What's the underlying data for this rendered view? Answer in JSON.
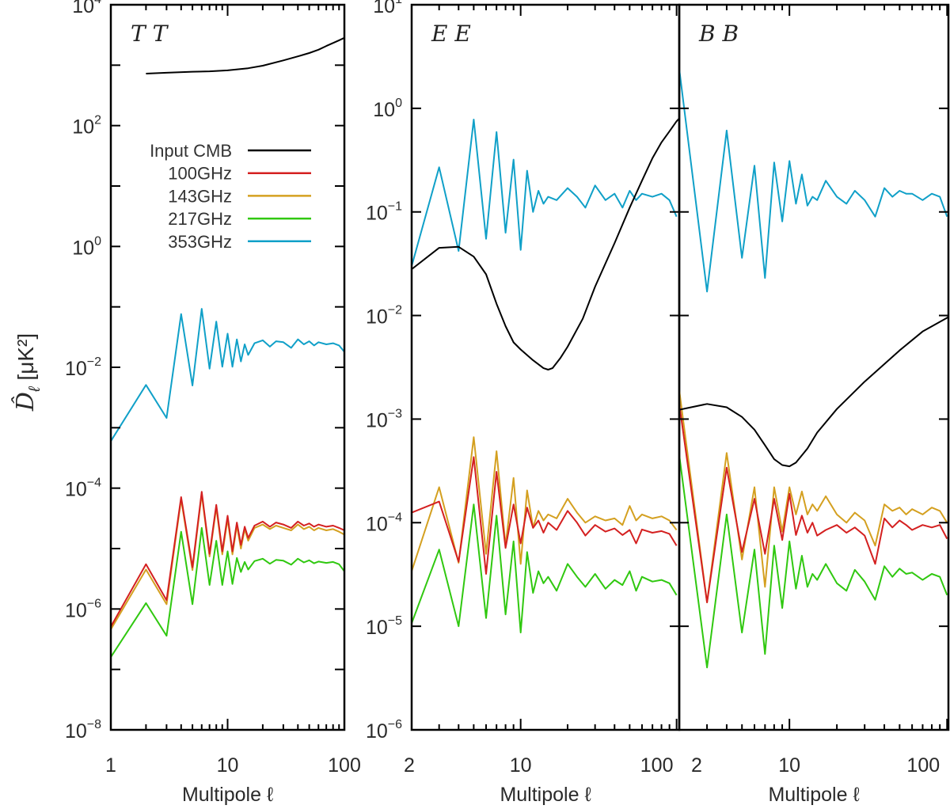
{
  "chart_data": {
    "type": "line",
    "ylabel": {
      "symbol": "D̂",
      "subscript": "ℓ",
      "unit": "[μK²]"
    },
    "legend": [
      {
        "label": "Input CMB",
        "color": "#000000"
      },
      {
        "label": "100GHz",
        "color": "#d42020"
      },
      {
        "label": "143GHz",
        "color": "#d4a020"
      },
      {
        "label": "217GHz",
        "color": "#30c810"
      },
      {
        "label": "353GHz",
        "color": "#10a0c8"
      }
    ],
    "legend_placement": "upper-left of first panel",
    "panels": [
      {
        "title": "TT",
        "xlabel": "Multipole ℓ",
        "xscale": "log",
        "yscale": "log",
        "xlim": [
          1,
          100
        ],
        "ylim": [
          1e-08,
          10000.0
        ],
        "xticks": [
          {
            "value": 1,
            "label": "1"
          },
          {
            "value": 10,
            "label": "10"
          },
          {
            "value": 100,
            "label": "100"
          }
        ],
        "yticks": [
          {
            "value": 10000.0,
            "exp": "4"
          },
          {
            "value": 100.0,
            "exp": "2"
          },
          {
            "value": 1,
            "exp": "0"
          },
          {
            "value": 0.01,
            "exp": "−2"
          },
          {
            "value": 0.0001,
            "exp": "−4"
          },
          {
            "value": 1e-06,
            "exp": "−6"
          },
          {
            "value": 1e-08,
            "exp": "−8"
          }
        ],
        "l": [
          1,
          2,
          3,
          4,
          5,
          6,
          7,
          8,
          9,
          10,
          11,
          12,
          13,
          14,
          15,
          17,
          20,
          23,
          26,
          30,
          35,
          40,
          45,
          50,
          55,
          60,
          70,
          80,
          90,
          100
        ],
        "series": [
          {
            "name": "100GHz",
            "values": [
              5.1e-07,
              5.5e-06,
              1.4e-06,
              7.1e-05,
              4.9e-06,
              8.7e-05,
              8.2e-06,
              5.3e-05,
              9e-06,
              3.5e-05,
              9e-06,
              2.7e-05,
              1.15e-05,
              2.3e-05,
              1.5e-05,
              2.4e-05,
              2.8e-05,
              2.3e-05,
              2.7e-05,
              2.5e-05,
              2.2e-05,
              2.8e-05,
              2.4e-05,
              2.6e-05,
              2.3e-05,
              2.5e-05,
              2.3e-05,
              2.4e-05,
              2.2e-05,
              2e-05
            ]
          },
          {
            "name": "143GHz",
            "values": [
              4.6e-07,
              4.5e-06,
              1.2e-06,
              6.5e-05,
              4.4e-06,
              8e-05,
              7.4e-06,
              4.8e-05,
              8e-06,
              3.1e-05,
              8e-06,
              2.4e-05,
              1e-05,
              2.1e-05,
              1.35e-05,
              2.2e-05,
              2.5e-05,
              2.1e-05,
              2.4e-05,
              2.2e-05,
              2e-05,
              2.5e-05,
              2.1e-05,
              2.3e-05,
              2e-05,
              2.2e-05,
              2e-05,
              2.1e-05,
              1.9e-05,
              1.7e-05
            ]
          },
          {
            "name": "217GHz",
            "values": [
              1.6e-07,
              1.25e-06,
              3.6e-07,
              1.9e-05,
              1.2e-06,
              2.2e-05,
              2.5e-06,
              1.35e-05,
              2.5e-06,
              9e-06,
              2.6e-06,
              7e-06,
              4.1e-06,
              6e-06,
              4.5e-06,
              6.2e-06,
              6.8e-06,
              5.6e-06,
              6.5e-06,
              6.3e-06,
              5.4e-06,
              6.8e-06,
              5.9e-06,
              6.4e-06,
              5.7e-06,
              6.1e-06,
              5.8e-06,
              6e-06,
              5.5e-06,
              4.2e-06
            ]
          },
          {
            "name": "353GHz",
            "values": [
              0.0006,
              0.0051,
              0.00145,
              0.076,
              0.005,
              0.093,
              0.0095,
              0.057,
              0.0102,
              0.036,
              0.0102,
              0.029,
              0.0125,
              0.024,
              0.016,
              0.025,
              0.028,
              0.022,
              0.027,
              0.026,
              0.021,
              0.029,
              0.024,
              0.027,
              0.023,
              0.026,
              0.024,
              0.025,
              0.023,
              0.018
            ]
          },
          {
            "name": "Input CMB",
            "l": [
              2,
              3,
              5,
              7,
              10,
              15,
              20,
              30,
              40,
              50,
              60,
              70,
              80,
              90,
              100
            ],
            "values": [
              725,
              750,
              780,
              790,
              820,
              890,
              980,
              1200,
              1400,
              1590,
              1800,
              2080,
              2330,
              2580,
              2830
            ]
          }
        ]
      },
      {
        "title": "EE",
        "xlabel": "Multipole ℓ",
        "xscale": "log",
        "yscale": "log",
        "xlim": [
          2,
          104
        ],
        "ylim": [
          1e-06,
          10
        ],
        "xticks": [
          {
            "value": 2,
            "label": "2"
          },
          {
            "value": 10,
            "label": "10"
          },
          {
            "value": 100,
            "label": "100"
          }
        ],
        "yticks": [
          {
            "value": 10,
            "exp": "1"
          },
          {
            "value": 1,
            "exp": "0"
          },
          {
            "value": 0.1,
            "exp": "−1"
          },
          {
            "value": 0.01,
            "exp": "−2"
          },
          {
            "value": 0.001,
            "exp": "−3"
          },
          {
            "value": 0.0001,
            "exp": "−4"
          },
          {
            "value": 1e-05,
            "exp": "−5"
          },
          {
            "value": 1e-06,
            "exp": "−6"
          }
        ],
        "l": [
          2,
          3,
          4,
          5,
          6,
          7,
          8,
          9,
          10,
          11,
          12,
          13,
          14,
          15,
          17,
          20,
          23,
          26,
          30,
          35,
          40,
          45,
          50,
          55,
          60,
          70,
          80,
          90,
          100
        ],
        "series": [
          {
            "name": "100GHz",
            "values": [
              0.000125,
              0.00016,
              4.2e-05,
              0.00043,
              3.2e-05,
              0.00031,
              5.7e-05,
              0.00015,
              6.3e-05,
              0.00014,
              8.9e-05,
              0.000105,
              8e-05,
              0.0001,
              8.5e-05,
              0.00013,
              0.0001,
              7.5e-05,
              9.5e-05,
              8.2e-05,
              8.8e-05,
              7.6e-05,
              8.5e-05,
              6.3e-05,
              8.6e-05,
              8e-05,
              8.3e-05,
              7.8e-05,
              6e-05
            ]
          },
          {
            "name": "143GHz",
            "values": [
              3.4e-05,
              0.00022,
              4.1e-05,
              0.00067,
              5e-05,
              0.00049,
              6e-05,
              0.00027,
              4e-05,
              0.000205,
              9e-05,
              0.00013,
              0.000105,
              0.00012,
              0.00011,
              0.00017,
              0.000125,
              0.0001,
              0.000115,
              0.000105,
              0.00011,
              9.5e-05,
              0.000145,
              0.000105,
              0.00012,
              0.00011,
              0.000115,
              0.000105,
              8.5e-05
            ]
          },
          {
            "name": "217GHz",
            "values": [
              1.07e-05,
              5.5e-05,
              1e-05,
              0.00015,
              1.2e-05,
              0.000117,
              1.3e-05,
              6.6e-05,
              8.7e-06,
              5.2e-05,
              2.1e-05,
              3.4e-05,
              2.6e-05,
              3e-05,
              2.2e-05,
              4e-05,
              3e-05,
              2.4e-05,
              3.2e-05,
              2.3e-05,
              2.8e-05,
              2.5e-05,
              3.4e-05,
              2.2e-05,
              3e-05,
              2.7e-05,
              2.8e-05,
              2.6e-05,
              2e-05
            ]
          },
          {
            "name": "353GHz",
            "values": [
              0.03,
              0.27,
              0.042,
              0.78,
              0.055,
              0.59,
              0.063,
              0.32,
              0.043,
              0.25,
              0.1,
              0.16,
              0.12,
              0.14,
              0.13,
              0.17,
              0.14,
              0.11,
              0.18,
              0.13,
              0.15,
              0.11,
              0.16,
              0.13,
              0.15,
              0.14,
              0.15,
              0.13,
              0.09
            ]
          },
          {
            "name": "Input CMB",
            "l": [
              2,
              3,
              4,
              5,
              6,
              7,
              8,
              9,
              10,
              12,
              14,
              15,
              16,
              18,
              20,
              25,
              30,
              40,
              50,
              60,
              70,
              80,
              90,
              100,
              104
            ],
            "values": [
              0.028,
              0.045,
              0.046,
              0.037,
              0.025,
              0.013,
              0.0079,
              0.0055,
              0.0047,
              0.0037,
              0.0031,
              0.003,
              0.0031,
              0.0039,
              0.005,
              0.0093,
              0.019,
              0.05,
              0.11,
              0.2,
              0.33,
              0.47,
              0.6,
              0.75,
              0.8
            ]
          }
        ]
      },
      {
        "title": "BB",
        "xlabel": "Multipole ℓ",
        "xscale": "log",
        "yscale": "log",
        "xlim": [
          2,
          102
        ],
        "ylim": [
          1e-06,
          10
        ],
        "xticks": [
          {
            "value": 2,
            "label": "2"
          },
          {
            "value": 10,
            "label": "10"
          },
          {
            "value": 100,
            "label": "100"
          }
        ],
        "yticks": [],
        "l": [
          2,
          3,
          4,
          5,
          6,
          7,
          8,
          9,
          10,
          11,
          12,
          13,
          14,
          15,
          17,
          20,
          23,
          26,
          30,
          35,
          40,
          45,
          50,
          55,
          60,
          70,
          80,
          90,
          100
        ],
        "series": [
          {
            "name": "100GHz",
            "values": [
              0.0014,
              1.7e-05,
              0.00034,
              5.2e-05,
              0.00017,
              5e-05,
              0.00017,
              6.8e-05,
              0.00019,
              7.6e-05,
              0.000117,
              8e-05,
              0.0001,
              7.5e-05,
              8.5e-05,
              9.5e-05,
              8e-05,
              9e-05,
              7.5e-05,
              4e-05,
              0.00011,
              9e-05,
              0.000105,
              9.5e-05,
              8.5e-05,
              9.5e-05,
              9e-05,
              9.5e-05,
              7e-05
            ]
          },
          {
            "name": "143GHz",
            "values": [
              0.0019,
              1.7e-05,
              0.00047,
              4.4e-05,
              0.00022,
              2.4e-05,
              0.00022,
              8.2e-05,
              0.00022,
              0.00012,
              0.0002,
              0.00012,
              0.00015,
              0.00013,
              0.00018,
              0.00012,
              0.0001,
              0.000125,
              0.000105,
              6e-05,
              0.00015,
              0.00013,
              0.00014,
              0.00012,
              0.000135,
              0.00012,
              0.00014,
              0.00013,
              0.0001
            ]
          },
          {
            "name": "217GHz",
            "values": [
              0.00045,
              4e-06,
              0.00012,
              8.7e-06,
              5.5e-05,
              5.4e-06,
              6e-05,
              1.5e-05,
              6.6e-05,
              2.3e-05,
              4.8e-05,
              2.4e-05,
              3.2e-05,
              2.8e-05,
              4e-05,
              2.6e-05,
              2.2e-05,
              3.5e-05,
              2.7e-05,
              1.8e-05,
              3.8e-05,
              3e-05,
              3.6e-05,
              3.2e-05,
              3.3e-05,
              2.8e-05,
              3.2e-05,
              3e-05,
              2e-05
            ]
          },
          {
            "name": "353GHz",
            "values": [
              2.4,
              0.017,
              0.61,
              0.036,
              0.28,
              0.023,
              0.3,
              0.081,
              0.31,
              0.12,
              0.23,
              0.115,
              0.14,
              0.13,
              0.2,
              0.14,
              0.12,
              0.16,
              0.13,
              0.09,
              0.17,
              0.14,
              0.16,
              0.15,
              0.15,
              0.13,
              0.15,
              0.14,
              0.09
            ]
          },
          {
            "name": "Input CMB",
            "l": [
              2,
              3,
              4,
              5,
              6,
              7,
              8,
              9,
              10,
              11,
              13,
              15,
              20,
              30,
              50,
              70,
              100,
              102
            ],
            "values": [
              0.00123,
              0.0014,
              0.0013,
              0.00105,
              0.00079,
              0.00056,
              0.00041,
              0.00036,
              0.00035,
              0.00038,
              0.00052,
              0.00074,
              0.00125,
              0.0023,
              0.0046,
              0.007,
              0.0095,
              0.0097
            ]
          }
        ]
      }
    ]
  }
}
